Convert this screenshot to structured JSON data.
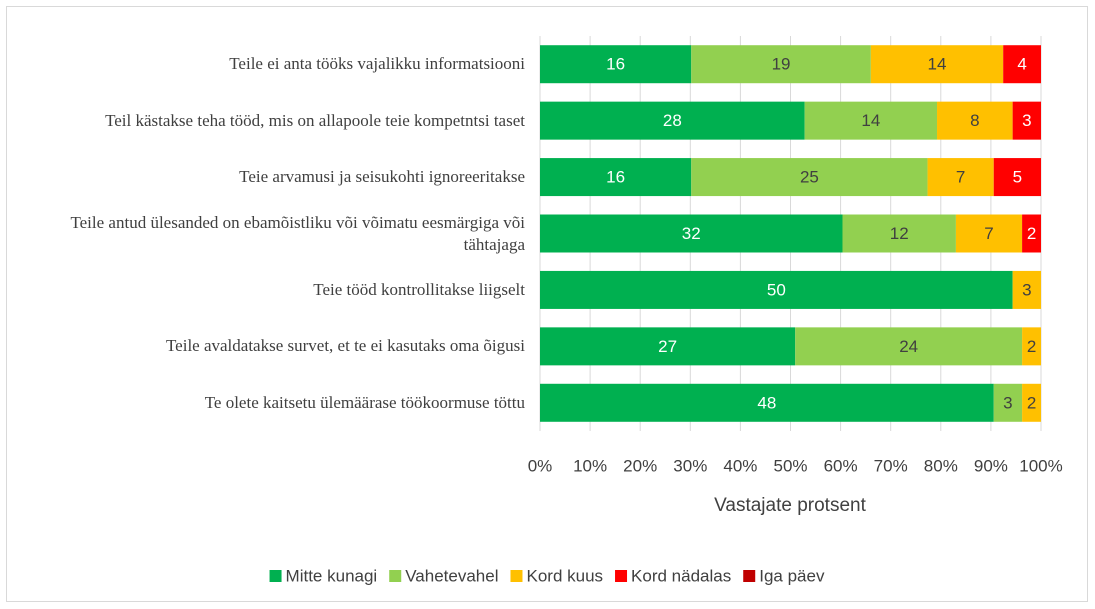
{
  "chart_data": {
    "type": "bar100",
    "categories": [
      "Teile ei anta tööks vajalikku informatsiooni",
      "Teil kästakse teha tööd, mis on allapoole teie kompetntsi taset",
      "Teie arvamusi ja seisukohti ignoreeritakse",
      "Teile antud ülesanded on ebamõistliku või võimatu eesmärgiga või tähtajaga",
      "Teie tööd kontrollitakse liigselt",
      "Teile avaldatakse survet, et te ei kasutaks oma õigusi",
      "Te olete kaitsetu ülemäärase töökoormuse töttu"
    ],
    "series": [
      {
        "name": "Mitte kunagi",
        "color": "#00b050",
        "label_color": "#ffffff",
        "values": [
          16,
          28,
          16,
          32,
          50,
          27,
          48
        ]
      },
      {
        "name": "Vahetevahel",
        "color": "#92d050",
        "label_color": "#404040",
        "values": [
          19,
          14,
          25,
          12,
          null,
          24,
          3
        ]
      },
      {
        "name": "Kord kuus",
        "color": "#ffc000",
        "label_color": "#404040",
        "values": [
          14,
          8,
          7,
          7,
          3,
          2,
          2
        ]
      },
      {
        "name": "Kord nädalas",
        "color": "#ff0000",
        "label_color": "#ffffff",
        "values": [
          4,
          3,
          5,
          2,
          null,
          null,
          null
        ]
      },
      {
        "name": "Iga päev",
        "color": "#c00000",
        "label_color": "#ffffff",
        "values": [
          null,
          null,
          null,
          null,
          null,
          null,
          null
        ]
      }
    ],
    "xlabel": "Vastajate protsent",
    "xlim": [
      0,
      100
    ],
    "xticks": [
      {
        "value": 0,
        "label": "0%"
      },
      {
        "value": 10,
        "label": "10%"
      },
      {
        "value": 20,
        "label": "20%"
      },
      {
        "value": 30,
        "label": "30%"
      },
      {
        "value": 40,
        "label": "40%"
      },
      {
        "value": 50,
        "label": "50%"
      },
      {
        "value": 60,
        "label": "60%"
      },
      {
        "value": 70,
        "label": "70%"
      },
      {
        "value": 80,
        "label": "80%"
      },
      {
        "value": 90,
        "label": "90%"
      },
      {
        "value": 100,
        "label": "100%"
      }
    ],
    "grid": true,
    "legend": "bottom"
  }
}
